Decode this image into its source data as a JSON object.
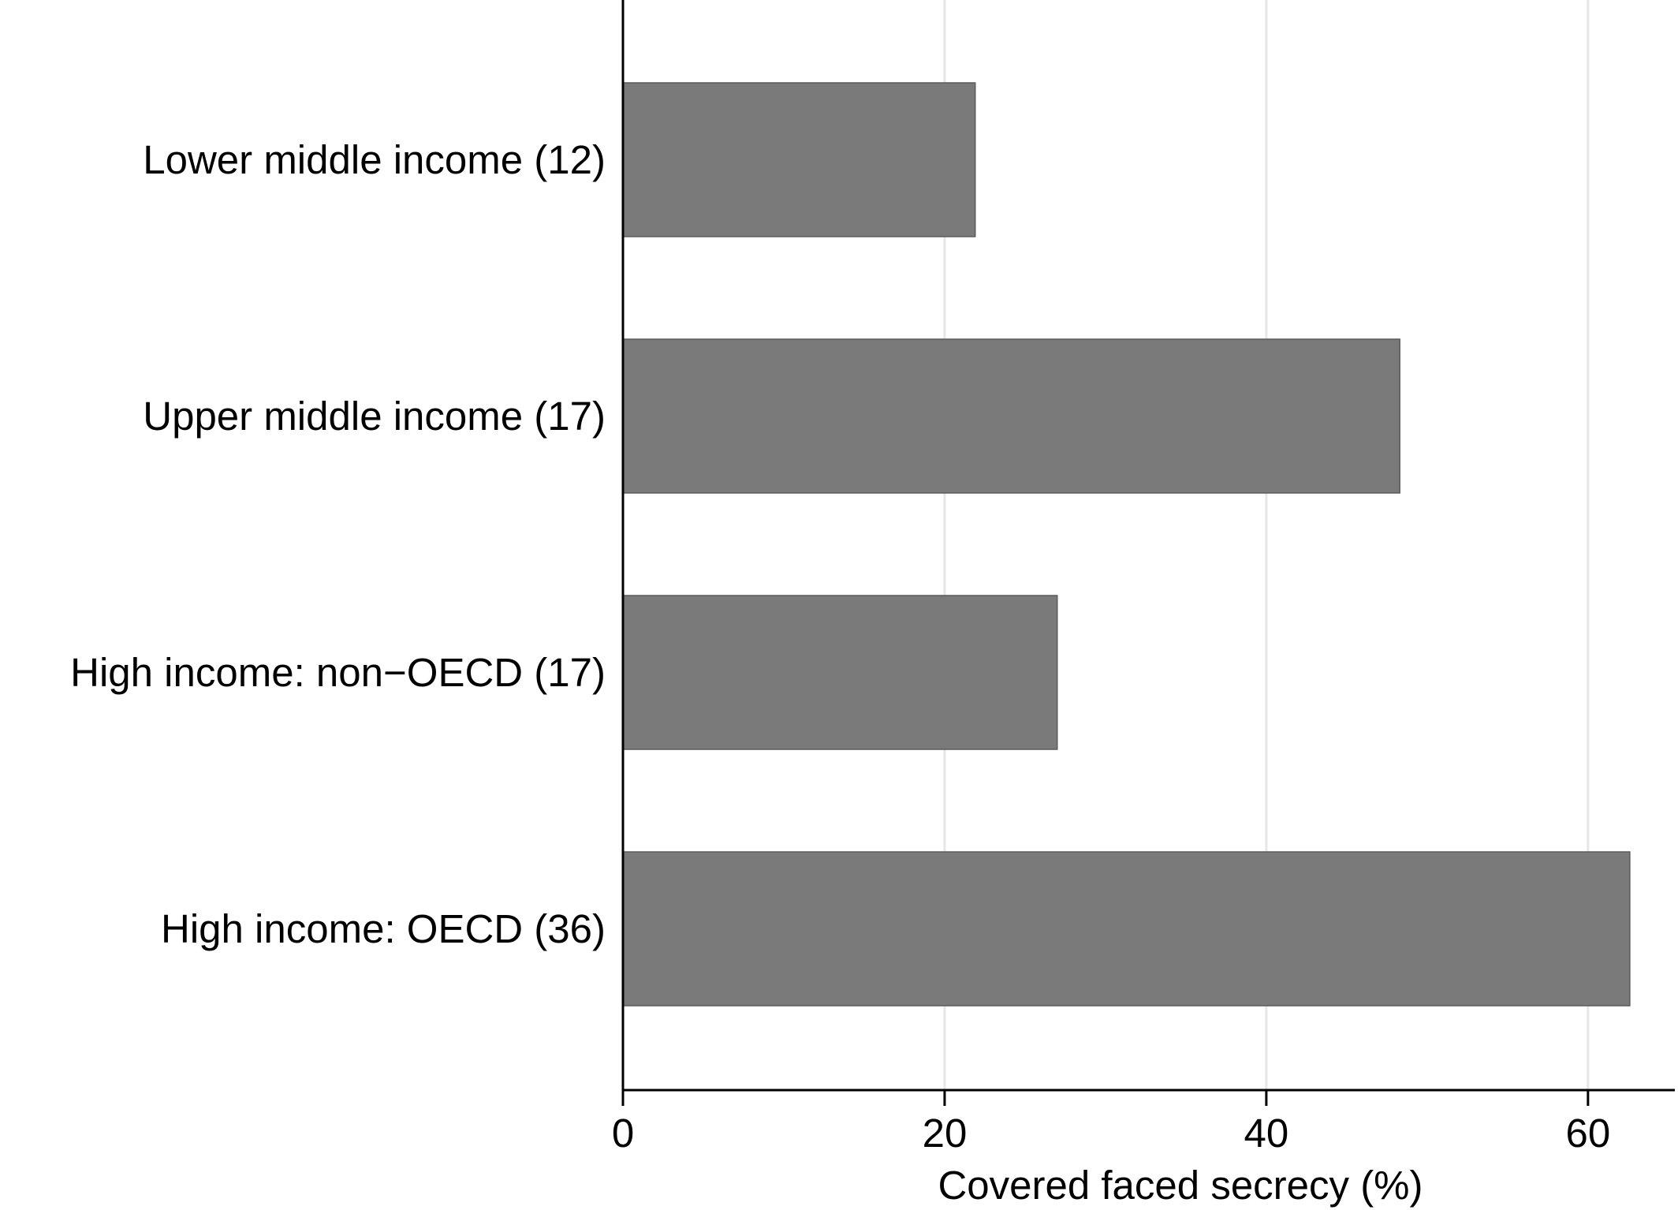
{
  "chart_data": {
    "type": "bar",
    "orientation": "horizontal",
    "categories": [
      "Lower middle income (12)",
      "Upper middle income (17)",
      "High income: non−OECD (17)",
      "High income: OECD (36)"
    ],
    "values": [
      21.9,
      48.3,
      27.0,
      62.6
    ],
    "xlabel": "Covered faced secrecy (%)",
    "ylabel": "",
    "xlim": [
      0,
      65.4
    ],
    "xticks": [
      0,
      20,
      40,
      60
    ],
    "grid": "vertical",
    "colors": {
      "bar": "#7a7a7a",
      "bar_edge": "#5a5a5a",
      "grid": "#e6e6e6",
      "axis": "#000000"
    }
  }
}
